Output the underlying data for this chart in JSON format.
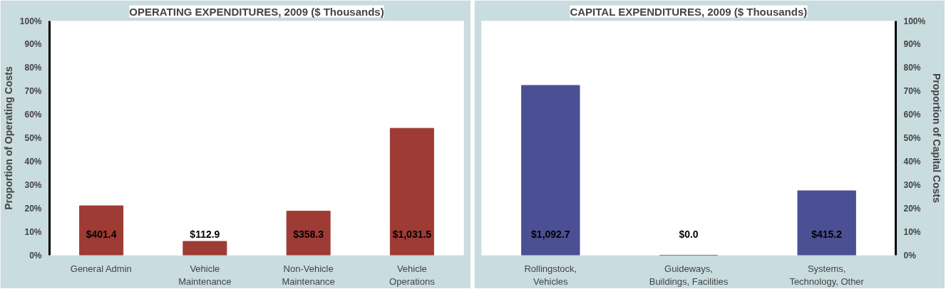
{
  "chart_data": [
    {
      "type": "bar",
      "title": "OPERATING EXPENDITURES, 2009 ($ Thousands)",
      "ylabel": "Proportion of Operating Costs",
      "categories": [
        "General Admin",
        "Vehicle\nMaintenance",
        "Non-Vehicle\nMaintenance",
        "Vehicle\nOperations"
      ],
      "series": [
        {
          "color": "#9e3b35",
          "values": [
            21.1,
            5.9,
            18.8,
            54.2
          ]
        }
      ],
      "annotations": [
        "$401.4",
        "$112.9",
        "$358.3",
        "$1,031.5"
      ],
      "ylim": [
        0,
        100
      ],
      "yticks": [
        {
          "value": 0,
          "label": "0%"
        },
        {
          "value": 10,
          "label": "10%"
        },
        {
          "value": 20,
          "label": "20%"
        },
        {
          "value": 30,
          "label": "30%"
        },
        {
          "value": 40,
          "label": "40%"
        },
        {
          "value": 50,
          "label": "50%"
        },
        {
          "value": 60,
          "label": "60%"
        },
        {
          "value": 70,
          "label": "70%"
        },
        {
          "value": 80,
          "label": "80%"
        },
        {
          "value": 90,
          "label": "90%"
        },
        {
          "value": 100,
          "label": "100%"
        }
      ],
      "grid": false
    },
    {
      "type": "bar",
      "title": "CAPITAL EXPENDITURES, 2009 ($ Thousands)",
      "y2label": "Proportion of Capital Costs",
      "categories": [
        "Rollingstock,\nVehicles",
        "Guideways,\nBuildings, Facilities",
        "Systems,\nTechnology, Other"
      ],
      "series": [
        {
          "color": "#4b4f93",
          "axis": "y2",
          "values": [
            72.5,
            0,
            27.5
          ]
        }
      ],
      "annotations": [
        "$1,092.7",
        "$0.0",
        "$415.2"
      ],
      "y2lim": [
        0,
        100
      ],
      "y2ticks": [
        {
          "value": 0,
          "label": "0%"
        },
        {
          "value": 10,
          "label": "10%"
        },
        {
          "value": 20,
          "label": "20%"
        },
        {
          "value": 30,
          "label": "30%"
        },
        {
          "value": 40,
          "label": "40%"
        },
        {
          "value": 50,
          "label": "50%"
        },
        {
          "value": 60,
          "label": "60%"
        },
        {
          "value": 70,
          "label": "70%"
        },
        {
          "value": 80,
          "label": "80%"
        },
        {
          "value": 90,
          "label": "90%"
        },
        {
          "value": 100,
          "label": "100%"
        }
      ],
      "grid": false
    }
  ]
}
